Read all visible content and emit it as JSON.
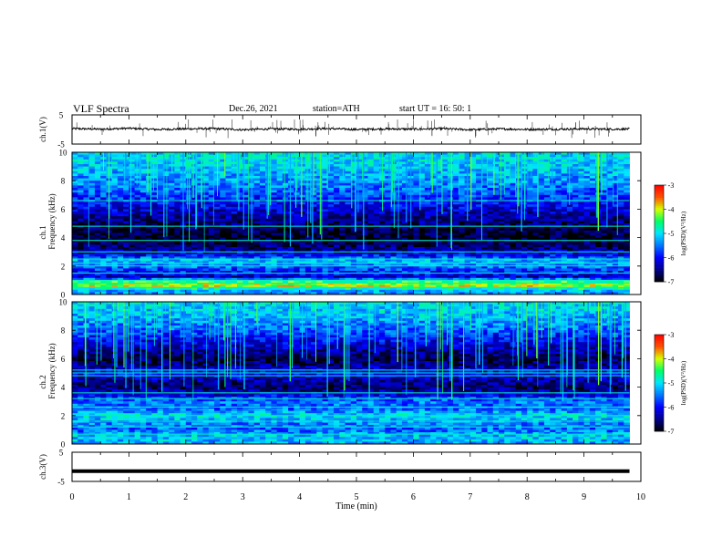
{
  "header": {
    "title": "VLF  Spectra",
    "date": "Dec.26, 2021",
    "station": "station=ATH",
    "start_ut": "start  UT  =   16: 50: 1"
  },
  "colors": {
    "waveform": "#000000",
    "frame": "#000000",
    "colormap": [
      "#000000",
      "#00008b",
      "#0000ff",
      "#0078ff",
      "#00e5ff",
      "#00ff66",
      "#d8ff00",
      "#ff5000",
      "#ff0000",
      "#ffffff"
    ]
  },
  "chart_data": [
    {
      "type": "line",
      "name": "ch1-waveform",
      "ylabel": "ch.1(V)",
      "ylim": [
        -5,
        5
      ],
      "yticks": [
        "5",
        "-5"
      ],
      "xlim": [
        0,
        10
      ],
      "x": [
        0,
        0.5,
        1,
        1.5,
        2,
        2.5,
        3,
        3.5,
        4,
        4.5,
        5,
        5.5,
        6,
        6.5,
        7,
        7.5,
        8,
        8.5,
        9,
        9.5,
        9.8
      ],
      "y": [
        0.3,
        0.1,
        0.4,
        0.0,
        0.2,
        0.3,
        -0.1,
        0.2,
        0.1,
        0.3,
        0.0,
        0.2,
        0.1,
        0.3,
        -0.1,
        0.2,
        0.0,
        0.1,
        0.2,
        0.1,
        0.2
      ],
      "noise_amplitude": 0.7,
      "spikes": 90
    },
    {
      "type": "heatmap",
      "name": "ch1-spectrogram",
      "ylabel_top": "ch.1",
      "ylabel": "Frequency  (kHz)",
      "ylim": [
        0,
        10
      ],
      "yticks": [
        "0",
        "2",
        "4",
        "6",
        "8",
        "10"
      ],
      "xlim": [
        0,
        9.8
      ],
      "colorbar": {
        "label": "log(PSD)(V²/Hz)",
        "ticks": [
          "-3",
          "-4",
          "-5",
          "-6",
          "-7"
        ],
        "range": [
          -7,
          -3
        ]
      },
      "profile": [
        {
          "f": 0.0,
          "v": -5.4
        },
        {
          "f": 0.3,
          "v": -5.2
        },
        {
          "f": 0.6,
          "v": -4.0
        },
        {
          "f": 0.9,
          "v": -4.3
        },
        {
          "f": 1.2,
          "v": -6.3
        },
        {
          "f": 1.6,
          "v": -5.9
        },
        {
          "f": 2.0,
          "v": -5.5
        },
        {
          "f": 2.4,
          "v": -5.2
        },
        {
          "f": 2.8,
          "v": -6.1
        },
        {
          "f": 3.2,
          "v": -6.5
        },
        {
          "f": 3.6,
          "v": -6.7
        },
        {
          "f": 4.0,
          "v": -6.9
        },
        {
          "f": 4.6,
          "v": -6.7
        },
        {
          "f": 5.2,
          "v": -6.5
        },
        {
          "f": 6.0,
          "v": -6.2
        },
        {
          "f": 7.0,
          "v": -5.7
        },
        {
          "f": 8.0,
          "v": -5.4
        },
        {
          "f": 9.0,
          "v": -5.1
        },
        {
          "f": 10.0,
          "v": -5.0
        }
      ],
      "tone_lines_khz": [
        0.5,
        0.8,
        1.0,
        1.5,
        2.0,
        2.2,
        2.5,
        3.0,
        3.8,
        4.8,
        6.6
      ]
    },
    {
      "type": "heatmap",
      "name": "ch2-spectrogram",
      "ylabel_top": "ch.2",
      "ylabel": "Frequency  (kHz)",
      "ylim": [
        0,
        10
      ],
      "yticks": [
        "0",
        "2",
        "4",
        "6",
        "8",
        "10"
      ],
      "xlim": [
        0,
        9.8
      ],
      "colorbar": {
        "label": "log(PSD)(V²/Hz)",
        "ticks": [
          "-3",
          "-4",
          "-5",
          "-6",
          "-7"
        ],
        "range": [
          -7,
          -3
        ]
      },
      "profile": [
        {
          "f": 0.0,
          "v": -5.3
        },
        {
          "f": 0.5,
          "v": -5.1
        },
        {
          "f": 1.0,
          "v": -5.6
        },
        {
          "f": 1.5,
          "v": -5.4
        },
        {
          "f": 2.0,
          "v": -5.0
        },
        {
          "f": 2.5,
          "v": -5.6
        },
        {
          "f": 3.0,
          "v": -5.5
        },
        {
          "f": 3.5,
          "v": -6.2
        },
        {
          "f": 4.0,
          "v": -6.6
        },
        {
          "f": 4.5,
          "v": -6.4
        },
        {
          "f": 5.0,
          "v": -6.0
        },
        {
          "f": 5.5,
          "v": -6.5
        },
        {
          "f": 6.0,
          "v": -6.7
        },
        {
          "f": 7.0,
          "v": -6.2
        },
        {
          "f": 8.0,
          "v": -5.6
        },
        {
          "f": 9.0,
          "v": -5.2
        },
        {
          "f": 10.0,
          "v": -5.0
        }
      ],
      "tone_lines_khz": [
        0.7,
        1.2,
        1.6,
        2.0,
        2.6,
        3.2,
        3.6,
        4.8,
        5.0,
        5.2
      ]
    },
    {
      "type": "line",
      "name": "ch3-waveform",
      "ylabel": "ch.3(V)",
      "ylim": [
        -5,
        5
      ],
      "yticks": [
        "5",
        "-5"
      ],
      "xlim": [
        0,
        10
      ],
      "x": [
        0,
        9.8
      ],
      "y": [
        -1.5,
        -1.5
      ]
    }
  ],
  "xaxis": {
    "label": "Time  (min)",
    "range": [
      0,
      10
    ],
    "ticks": [
      "0",
      "1",
      "2",
      "3",
      "4",
      "5",
      "6",
      "7",
      "8",
      "9",
      "10"
    ]
  }
}
